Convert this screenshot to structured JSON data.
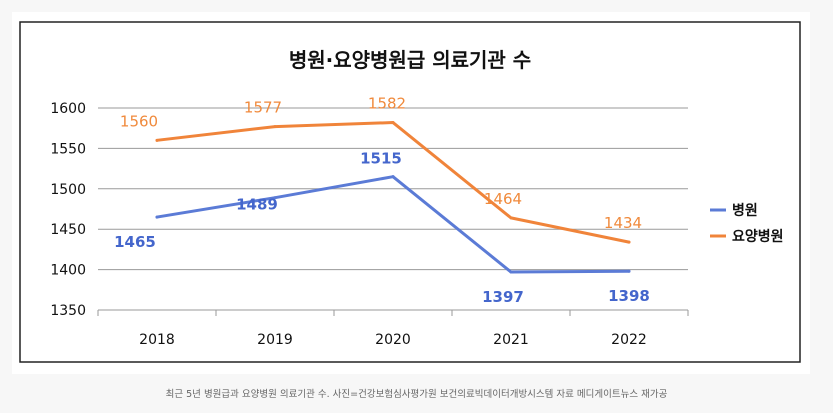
{
  "chart_data": {
    "type": "line",
    "title": "병원·요양병원급 의료기관 수",
    "categories": [
      "2018",
      "2019",
      "2020",
      "2021",
      "2022"
    ],
    "ylim": [
      1350,
      1600
    ],
    "yticks": [
      "1600",
      "1550",
      "1500",
      "1450",
      "1400",
      "1350"
    ],
    "grid": true,
    "legend_position": "right",
    "series": [
      {
        "name": "병원",
        "color": "#5b7bd6",
        "values": [
          1465,
          1489,
          1515,
          1397,
          1398
        ],
        "labels": [
          "1465",
          "1489",
          "1515",
          "1397",
          "1398"
        ]
      },
      {
        "name": "요양병원",
        "color": "#f0843a",
        "values": [
          1560,
          1577,
          1582,
          1464,
          1434
        ],
        "labels": [
          "1560",
          "1577",
          "1582",
          "1464",
          "1434"
        ]
      }
    ]
  },
  "caption": "최근 5년 병원급과 요양병원 의료기관 수. 사진=건강보험심사평가원 보건의료빅데이터개방시스템 자료 메디게이트뉴스 재가공"
}
